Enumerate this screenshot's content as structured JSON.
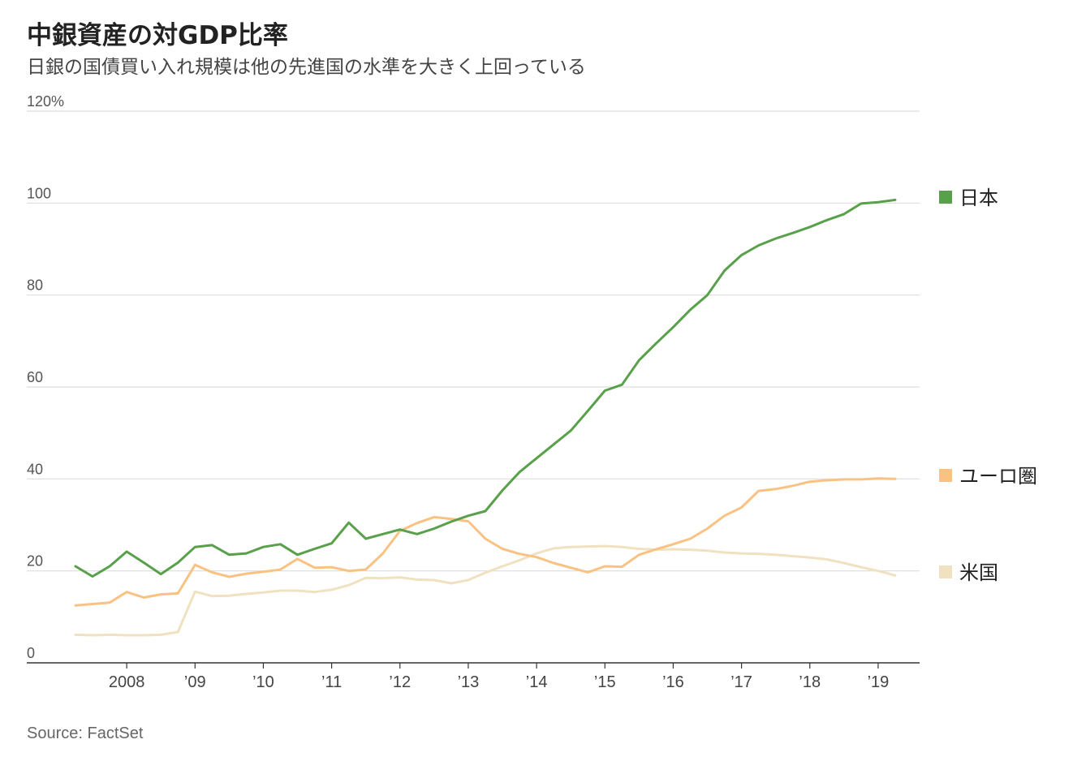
{
  "title": "中銀資産の対GDP比率",
  "subtitle": "日銀の国債買い入れ規模は他の先進国の水準を大きく上回っている",
  "source": "Source: FactSet",
  "chart_data": {
    "type": "line",
    "title": "中銀資産の対GDP比率",
    "subtitle": "日銀の国債買い入れ規模は他の先進国の水準を大きく上回っている",
    "xlabel": "",
    "ylabel": "",
    "xlim": [
      2007.25,
      2019.5
    ],
    "ylim": [
      0,
      120
    ],
    "y_ticks": [
      0,
      20,
      40,
      60,
      80,
      100,
      120
    ],
    "y_tick_labels": [
      "0",
      "20",
      "40",
      "60",
      "80",
      "100",
      "120%"
    ],
    "x_ticks": [
      2008,
      2009,
      2010,
      2011,
      2012,
      2013,
      2014,
      2015,
      2016,
      2017,
      2018,
      2019
    ],
    "x_tick_labels": [
      "2008",
      "’09",
      "’10",
      "’11",
      "’12",
      "’13",
      "’14",
      "’15",
      "’16",
      "’17",
      "’18",
      "’19"
    ],
    "grid": "horizontal",
    "legend_placement": "right, at line ends",
    "series": [
      {
        "name": "日本",
        "color": "#58a04a",
        "x": [
          2007.25,
          2007.5,
          2007.75,
          2008.0,
          2008.25,
          2008.5,
          2008.75,
          2009.0,
          2009.25,
          2009.5,
          2009.75,
          2010.0,
          2010.25,
          2010.5,
          2010.75,
          2011.0,
          2011.25,
          2011.5,
          2011.75,
          2012.0,
          2012.25,
          2012.5,
          2012.75,
          2013.0,
          2013.25,
          2013.5,
          2013.75,
          2014.0,
          2014.25,
          2014.5,
          2014.75,
          2015.0,
          2015.25,
          2015.5,
          2015.75,
          2016.0,
          2016.25,
          2016.5,
          2016.75,
          2017.0,
          2017.25,
          2017.5,
          2017.75,
          2018.0,
          2018.25,
          2018.5,
          2018.75,
          2019.0,
          2019.25
        ],
        "values": [
          21.0,
          18.8,
          21.0,
          24.2,
          21.8,
          19.3,
          21.8,
          25.2,
          25.6,
          23.5,
          23.8,
          25.2,
          25.8,
          23.5,
          24.8,
          26.0,
          30.5,
          27.0,
          28.0,
          29.0,
          28.0,
          29.2,
          30.7,
          32.0,
          33.0,
          37.5,
          41.5,
          44.5,
          47.5,
          50.5,
          54.8,
          59.2,
          60.5,
          65.8,
          69.5,
          73.0,
          76.8,
          80.0,
          85.3,
          88.7,
          90.8,
          92.3,
          93.5,
          94.8,
          96.3,
          97.6,
          99.9,
          100.2,
          100.7
        ]
      },
      {
        "name": "ユーロ圏",
        "color": "#f9c283",
        "x": [
          2007.25,
          2007.5,
          2007.75,
          2008.0,
          2008.25,
          2008.5,
          2008.75,
          2009.0,
          2009.25,
          2009.5,
          2009.75,
          2010.0,
          2010.25,
          2010.5,
          2010.75,
          2011.0,
          2011.25,
          2011.5,
          2011.75,
          2012.0,
          2012.25,
          2012.5,
          2012.75,
          2013.0,
          2013.25,
          2013.5,
          2013.75,
          2014.0,
          2014.25,
          2014.5,
          2014.75,
          2015.0,
          2015.25,
          2015.5,
          2015.75,
          2016.0,
          2016.25,
          2016.5,
          2016.75,
          2017.0,
          2017.25,
          2017.5,
          2017.75,
          2018.0,
          2018.25,
          2018.5,
          2018.75,
          2019.0,
          2019.25
        ],
        "values": [
          12.5,
          12.8,
          13.1,
          15.4,
          14.2,
          14.9,
          15.1,
          21.3,
          19.7,
          18.7,
          19.4,
          19.8,
          20.3,
          22.6,
          20.7,
          20.8,
          20.0,
          20.3,
          23.8,
          28.7,
          30.4,
          31.7,
          31.3,
          30.8,
          27.0,
          24.8,
          23.7,
          23.0,
          21.7,
          20.7,
          19.7,
          21.0,
          20.9,
          23.5,
          24.7,
          25.8,
          27.0,
          29.2,
          32.0,
          33.8,
          37.4,
          37.8,
          38.5,
          39.4,
          39.7,
          39.9,
          39.9,
          40.1,
          40.0
        ]
      },
      {
        "name": "米国",
        "color": "#f0e1c0",
        "x": [
          2007.25,
          2007.5,
          2007.75,
          2008.0,
          2008.25,
          2008.5,
          2008.75,
          2009.0,
          2009.25,
          2009.5,
          2009.75,
          2010.0,
          2010.25,
          2010.5,
          2010.75,
          2011.0,
          2011.25,
          2011.5,
          2011.75,
          2012.0,
          2012.25,
          2012.5,
          2012.75,
          2013.0,
          2013.25,
          2013.5,
          2013.75,
          2014.0,
          2014.25,
          2014.5,
          2014.75,
          2015.0,
          2015.25,
          2015.5,
          2015.75,
          2016.0,
          2016.25,
          2016.5,
          2016.75,
          2017.0,
          2017.25,
          2017.5,
          2017.75,
          2018.0,
          2018.25,
          2018.5,
          2018.75,
          2019.0,
          2019.25
        ],
        "values": [
          6.1,
          6.0,
          6.1,
          6.0,
          6.0,
          6.1,
          6.7,
          15.5,
          14.5,
          14.6,
          15.0,
          15.3,
          15.7,
          15.7,
          15.4,
          15.9,
          16.9,
          18.5,
          18.4,
          18.6,
          18.1,
          18.0,
          17.3,
          18.0,
          19.6,
          21.0,
          22.3,
          23.8,
          24.9,
          25.2,
          25.3,
          25.4,
          25.2,
          24.8,
          24.6,
          24.7,
          24.6,
          24.4,
          24.0,
          23.8,
          23.7,
          23.5,
          23.2,
          22.9,
          22.5,
          21.7,
          20.8,
          20.0,
          19.0
        ]
      }
    ]
  }
}
